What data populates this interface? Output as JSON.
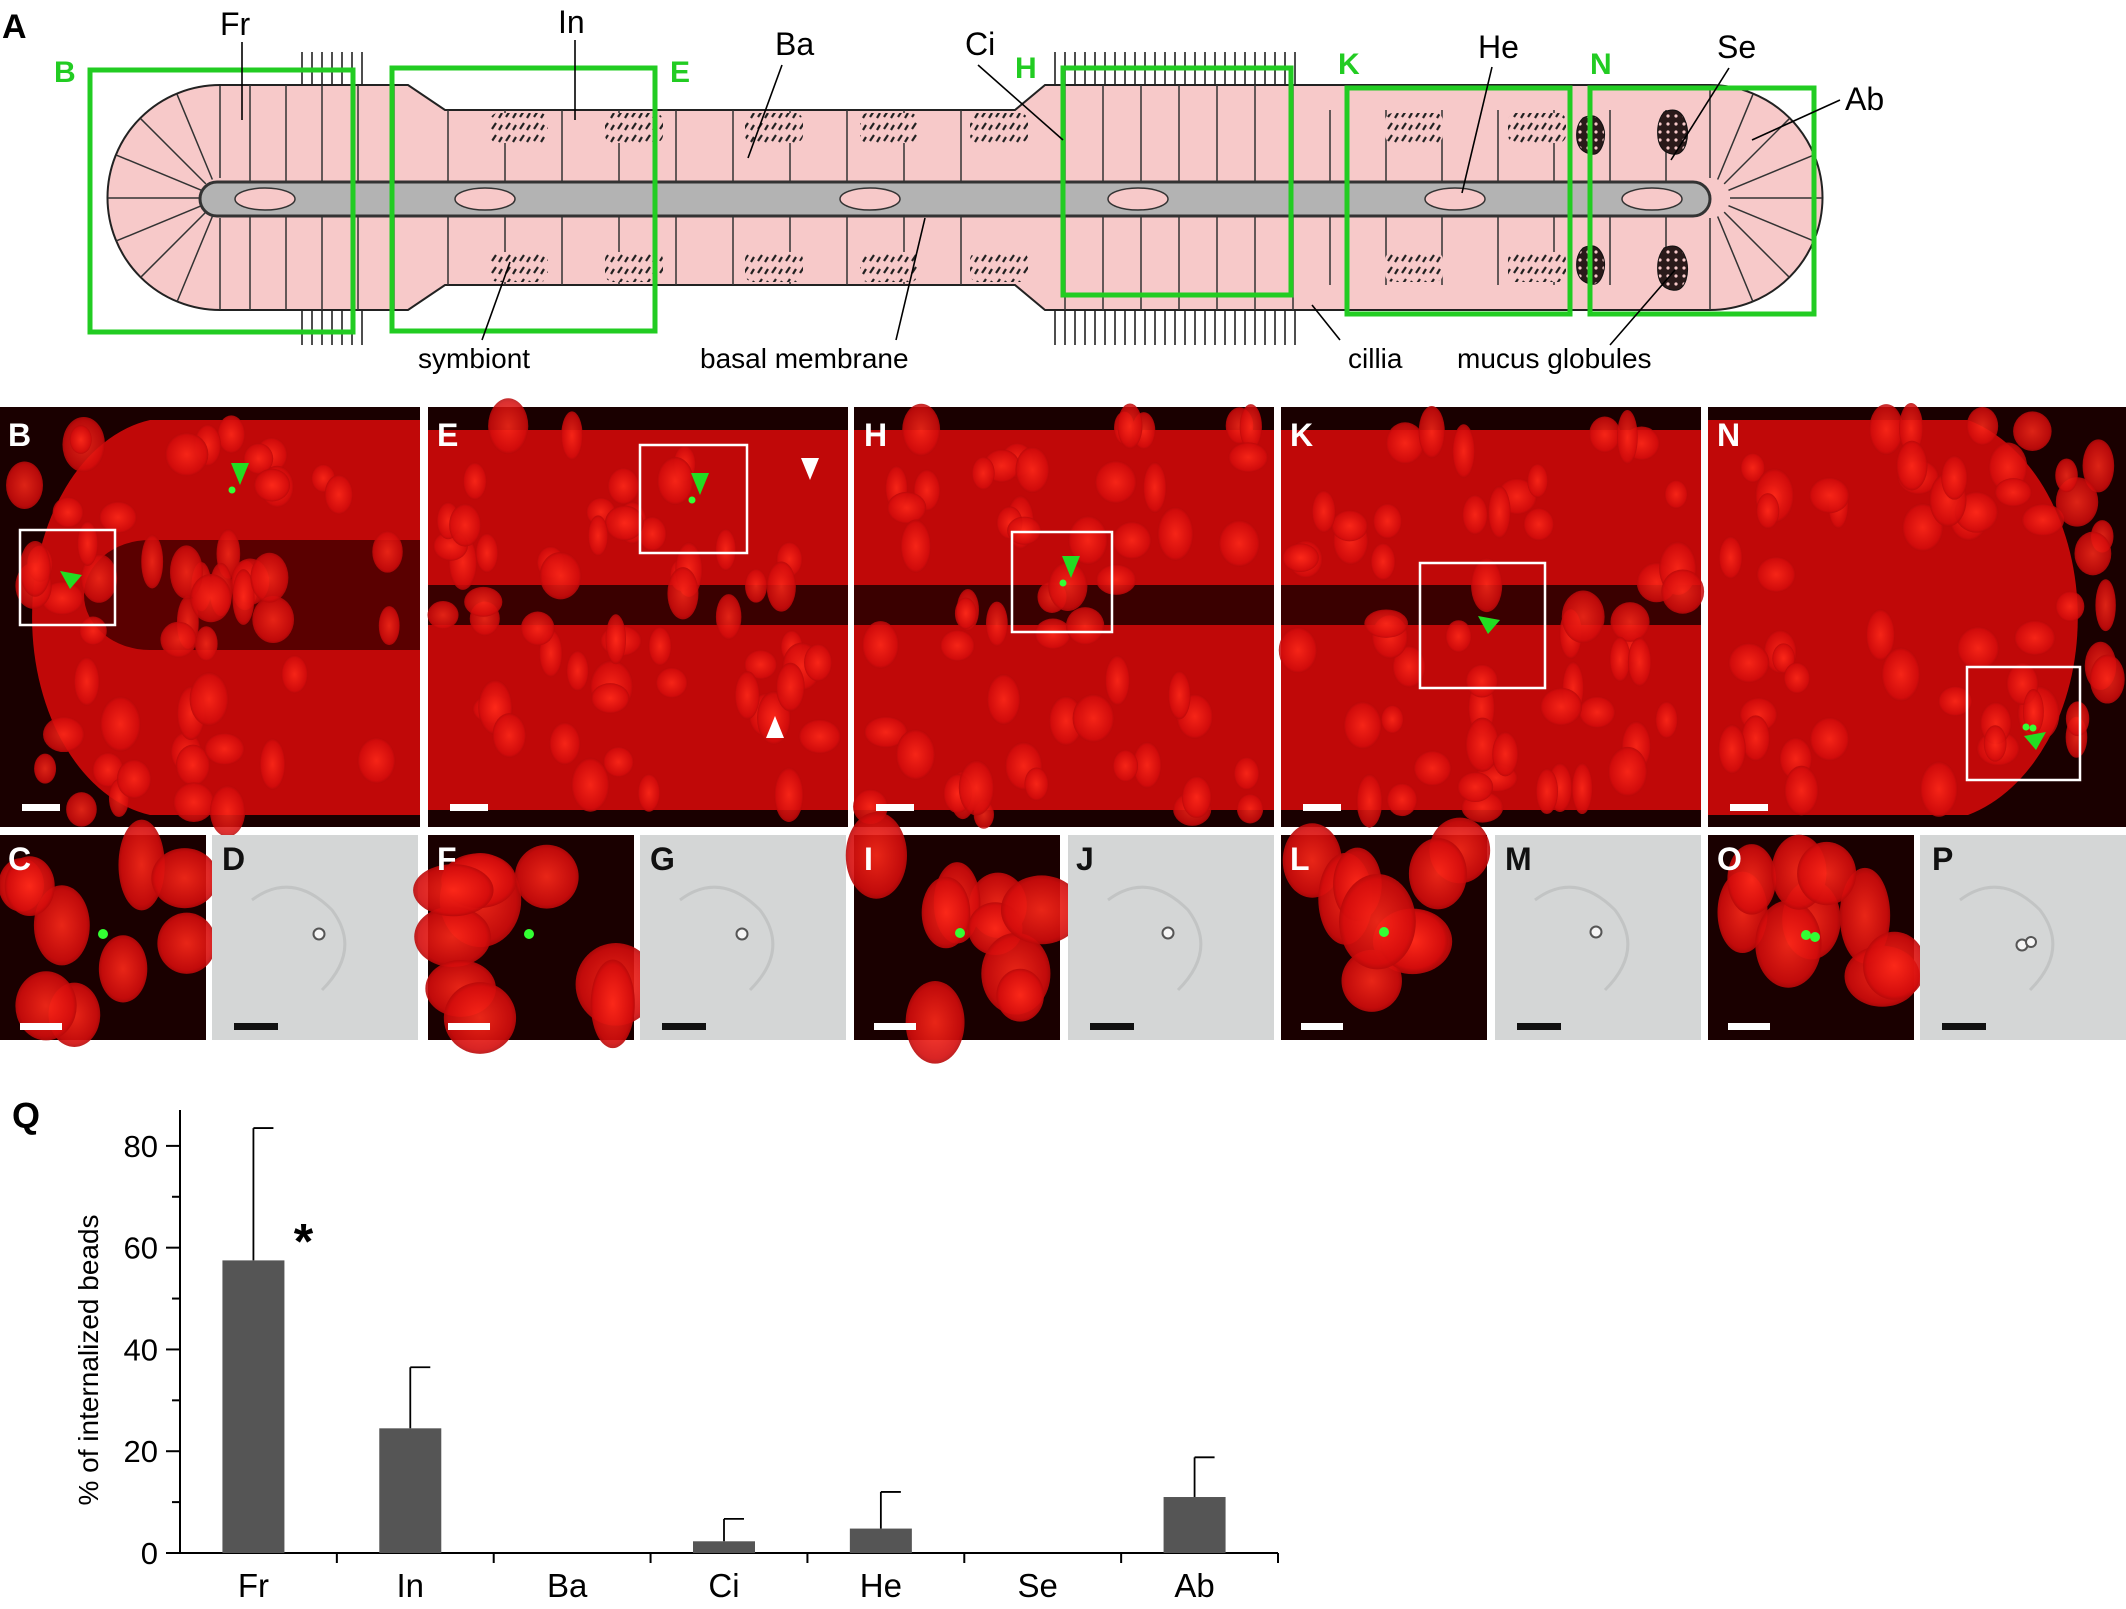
{
  "panel_labels": {
    "A": "A",
    "B": "B",
    "C": "C",
    "D": "D",
    "E": "E",
    "F": "F",
    "G": "G",
    "H": "H",
    "I": "I",
    "J": "J",
    "K": "K",
    "L": "L",
    "M": "M",
    "N": "N",
    "O": "O",
    "P": "P",
    "Q": "Q"
  },
  "schematic": {
    "box_labels": {
      "B": "B",
      "E": "E",
      "H": "H",
      "K": "K",
      "N": "N"
    },
    "region_labels": {
      "Fr": "Fr",
      "In": "In",
      "Ba": "Ba",
      "Ci": "Ci",
      "He": "He",
      "Se": "Se",
      "Ab": "Ab"
    },
    "annotations": {
      "symbiont": "symbiont",
      "basal_membrane": "basal membrane",
      "cillia": "cillia",
      "mucus_globules": "mucus globules"
    },
    "colors": {
      "tissue": "#f7c9c9",
      "lumen": "#b3b3b3",
      "box": "#22cc22"
    }
  },
  "micrographs": {
    "fluorescence_bg": "#1a0000",
    "fluorescence_cell": "#e01010",
    "bead": "#33ff33",
    "brightfield_bg": "#d4d6d6"
  },
  "chart_data": {
    "type": "bar",
    "categories": [
      "Fr",
      "In",
      "Ba",
      "Ci",
      "He",
      "Se",
      "Ab"
    ],
    "values": [
      57.5,
      24.5,
      0,
      2.3,
      4.8,
      0,
      11
    ],
    "error_upper": [
      83.5,
      36.5,
      0,
      6.7,
      12,
      0,
      18.8
    ],
    "ylabel": "% of internalized beads",
    "xlabel": "",
    "ylim": [
      0,
      90
    ],
    "yticks": [
      0,
      20,
      40,
      60,
      80
    ],
    "significance": {
      "category": "Fr",
      "mark": "*"
    },
    "bar_color": "#555555"
  }
}
